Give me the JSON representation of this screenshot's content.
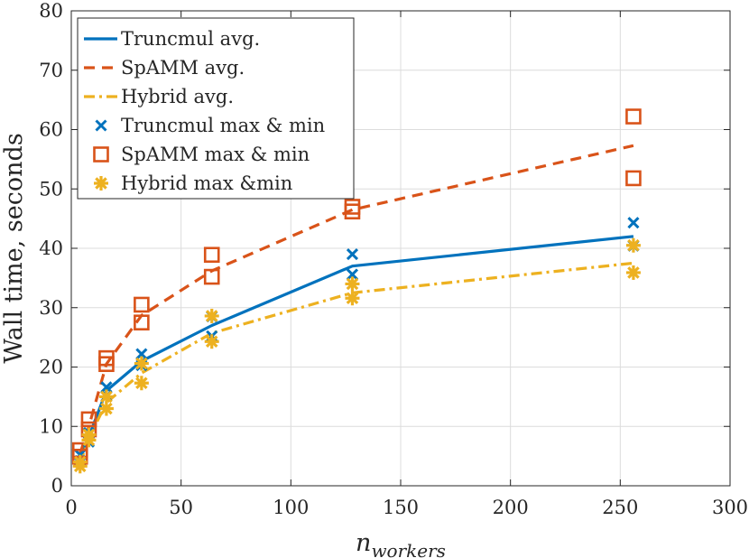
{
  "chart_data": {
    "type": "line",
    "title": "",
    "xlabel_base": "n",
    "xlabel_sub": "workers",
    "ylabel": "Wall time, seconds",
    "xlim": [
      0,
      300
    ],
    "ylim": [
      0,
      80
    ],
    "xticks": [
      0,
      50,
      100,
      150,
      200,
      250,
      300
    ],
    "yticks": [
      0,
      10,
      20,
      30,
      40,
      50,
      60,
      70,
      80
    ],
    "grid": true,
    "legend_position": "top-left",
    "x": [
      4,
      8,
      16,
      32,
      64,
      128,
      256
    ],
    "series": [
      {
        "name": "Truncmul avg.",
        "kind": "line",
        "style": "solid",
        "color": "#0072BD",
        "values": [
          4.8,
          8.3,
          16.0,
          21.0,
          27.0,
          37.0,
          42.0
        ]
      },
      {
        "name": "SpAMM avg.",
        "kind": "line",
        "style": "dashed",
        "color": "#D95319",
        "values": [
          5.4,
          10.0,
          20.5,
          28.7,
          36.2,
          46.5,
          57.3
        ]
      },
      {
        "name": "Hybrid avg.",
        "kind": "line",
        "style": "dashdot",
        "color": "#EDB120",
        "values": [
          3.8,
          8.0,
          14.0,
          19.0,
          25.7,
          32.5,
          37.5
        ]
      },
      {
        "name": "Truncmul max & min",
        "kind": "marker",
        "marker": "x",
        "color": "#0072BD",
        "max": [
          5.2,
          8.9,
          16.6,
          22.2,
          28.5,
          39.0,
          44.3
        ],
        "min": [
          4.2,
          7.4,
          15.1,
          20.3,
          25.2,
          35.6,
          40.4
        ]
      },
      {
        "name": "SpAMM max & min",
        "kind": "marker",
        "marker": "square",
        "color": "#D95319",
        "max": [
          6.0,
          11.2,
          21.5,
          30.5,
          38.9,
          47.0,
          62.2
        ],
        "min": [
          4.9,
          9.5,
          20.5,
          27.5,
          35.2,
          46.2,
          51.8
        ]
      },
      {
        "name": "Hybrid max &min",
        "kind": "marker",
        "marker": "asterisk",
        "color": "#EDB120",
        "max": [
          4.0,
          8.6,
          15.0,
          20.6,
          28.6,
          34.0,
          40.5
        ],
        "min": [
          3.3,
          7.7,
          13.0,
          17.3,
          24.3,
          31.6,
          35.9
        ]
      }
    ]
  }
}
